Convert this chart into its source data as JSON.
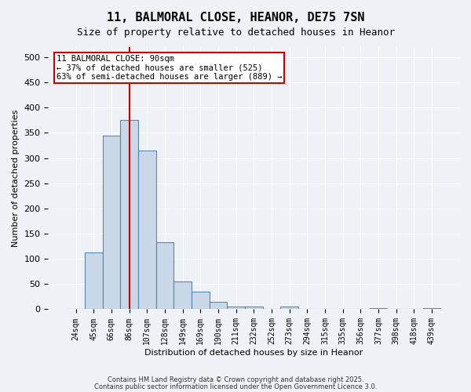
{
  "title_line1": "11, BALMORAL CLOSE, HEANOR, DE75 7SN",
  "title_line2": "Size of property relative to detached houses in Heanor",
  "xlabel": "Distribution of detached houses by size in Heanor",
  "ylabel": "Number of detached properties",
  "bar_color": "#c8d8e8",
  "bar_edge_color": "#5588aa",
  "categories": [
    "24sqm",
    "45sqm",
    "66sqm",
    "86sqm",
    "107sqm",
    "128sqm",
    "149sqm",
    "169sqm",
    "190sqm",
    "211sqm",
    "232sqm",
    "252sqm",
    "273sqm",
    "294sqm",
    "315sqm",
    "335sqm",
    "356sqm",
    "377sqm",
    "398sqm",
    "418sqm",
    "439sqm"
  ],
  "values": [
    0,
    112,
    345,
    375,
    315,
    133,
    55,
    35,
    15,
    5,
    5,
    0,
    5,
    0,
    0,
    0,
    0,
    2,
    0,
    0,
    2
  ],
  "ylim": [
    0,
    520
  ],
  "yticks": [
    0,
    50,
    100,
    150,
    200,
    250,
    300,
    350,
    400,
    450,
    500
  ],
  "vline_x": 3,
  "vline_color": "#cc0000",
  "annotation_text": "11 BALMORAL CLOSE: 90sqm\n← 37% of detached houses are smaller (525)\n63% of semi-detached houses are larger (889) →",
  "annotation_box_color": "#ffffff",
  "annotation_border_color": "#cc0000",
  "footer_line1": "Contains HM Land Registry data © Crown copyright and database right 2025.",
  "footer_line2": "Contains public sector information licensed under the Open Government Licence 3.0.",
  "background_color": "#eef2f7",
  "grid_color": "#ffffff"
}
